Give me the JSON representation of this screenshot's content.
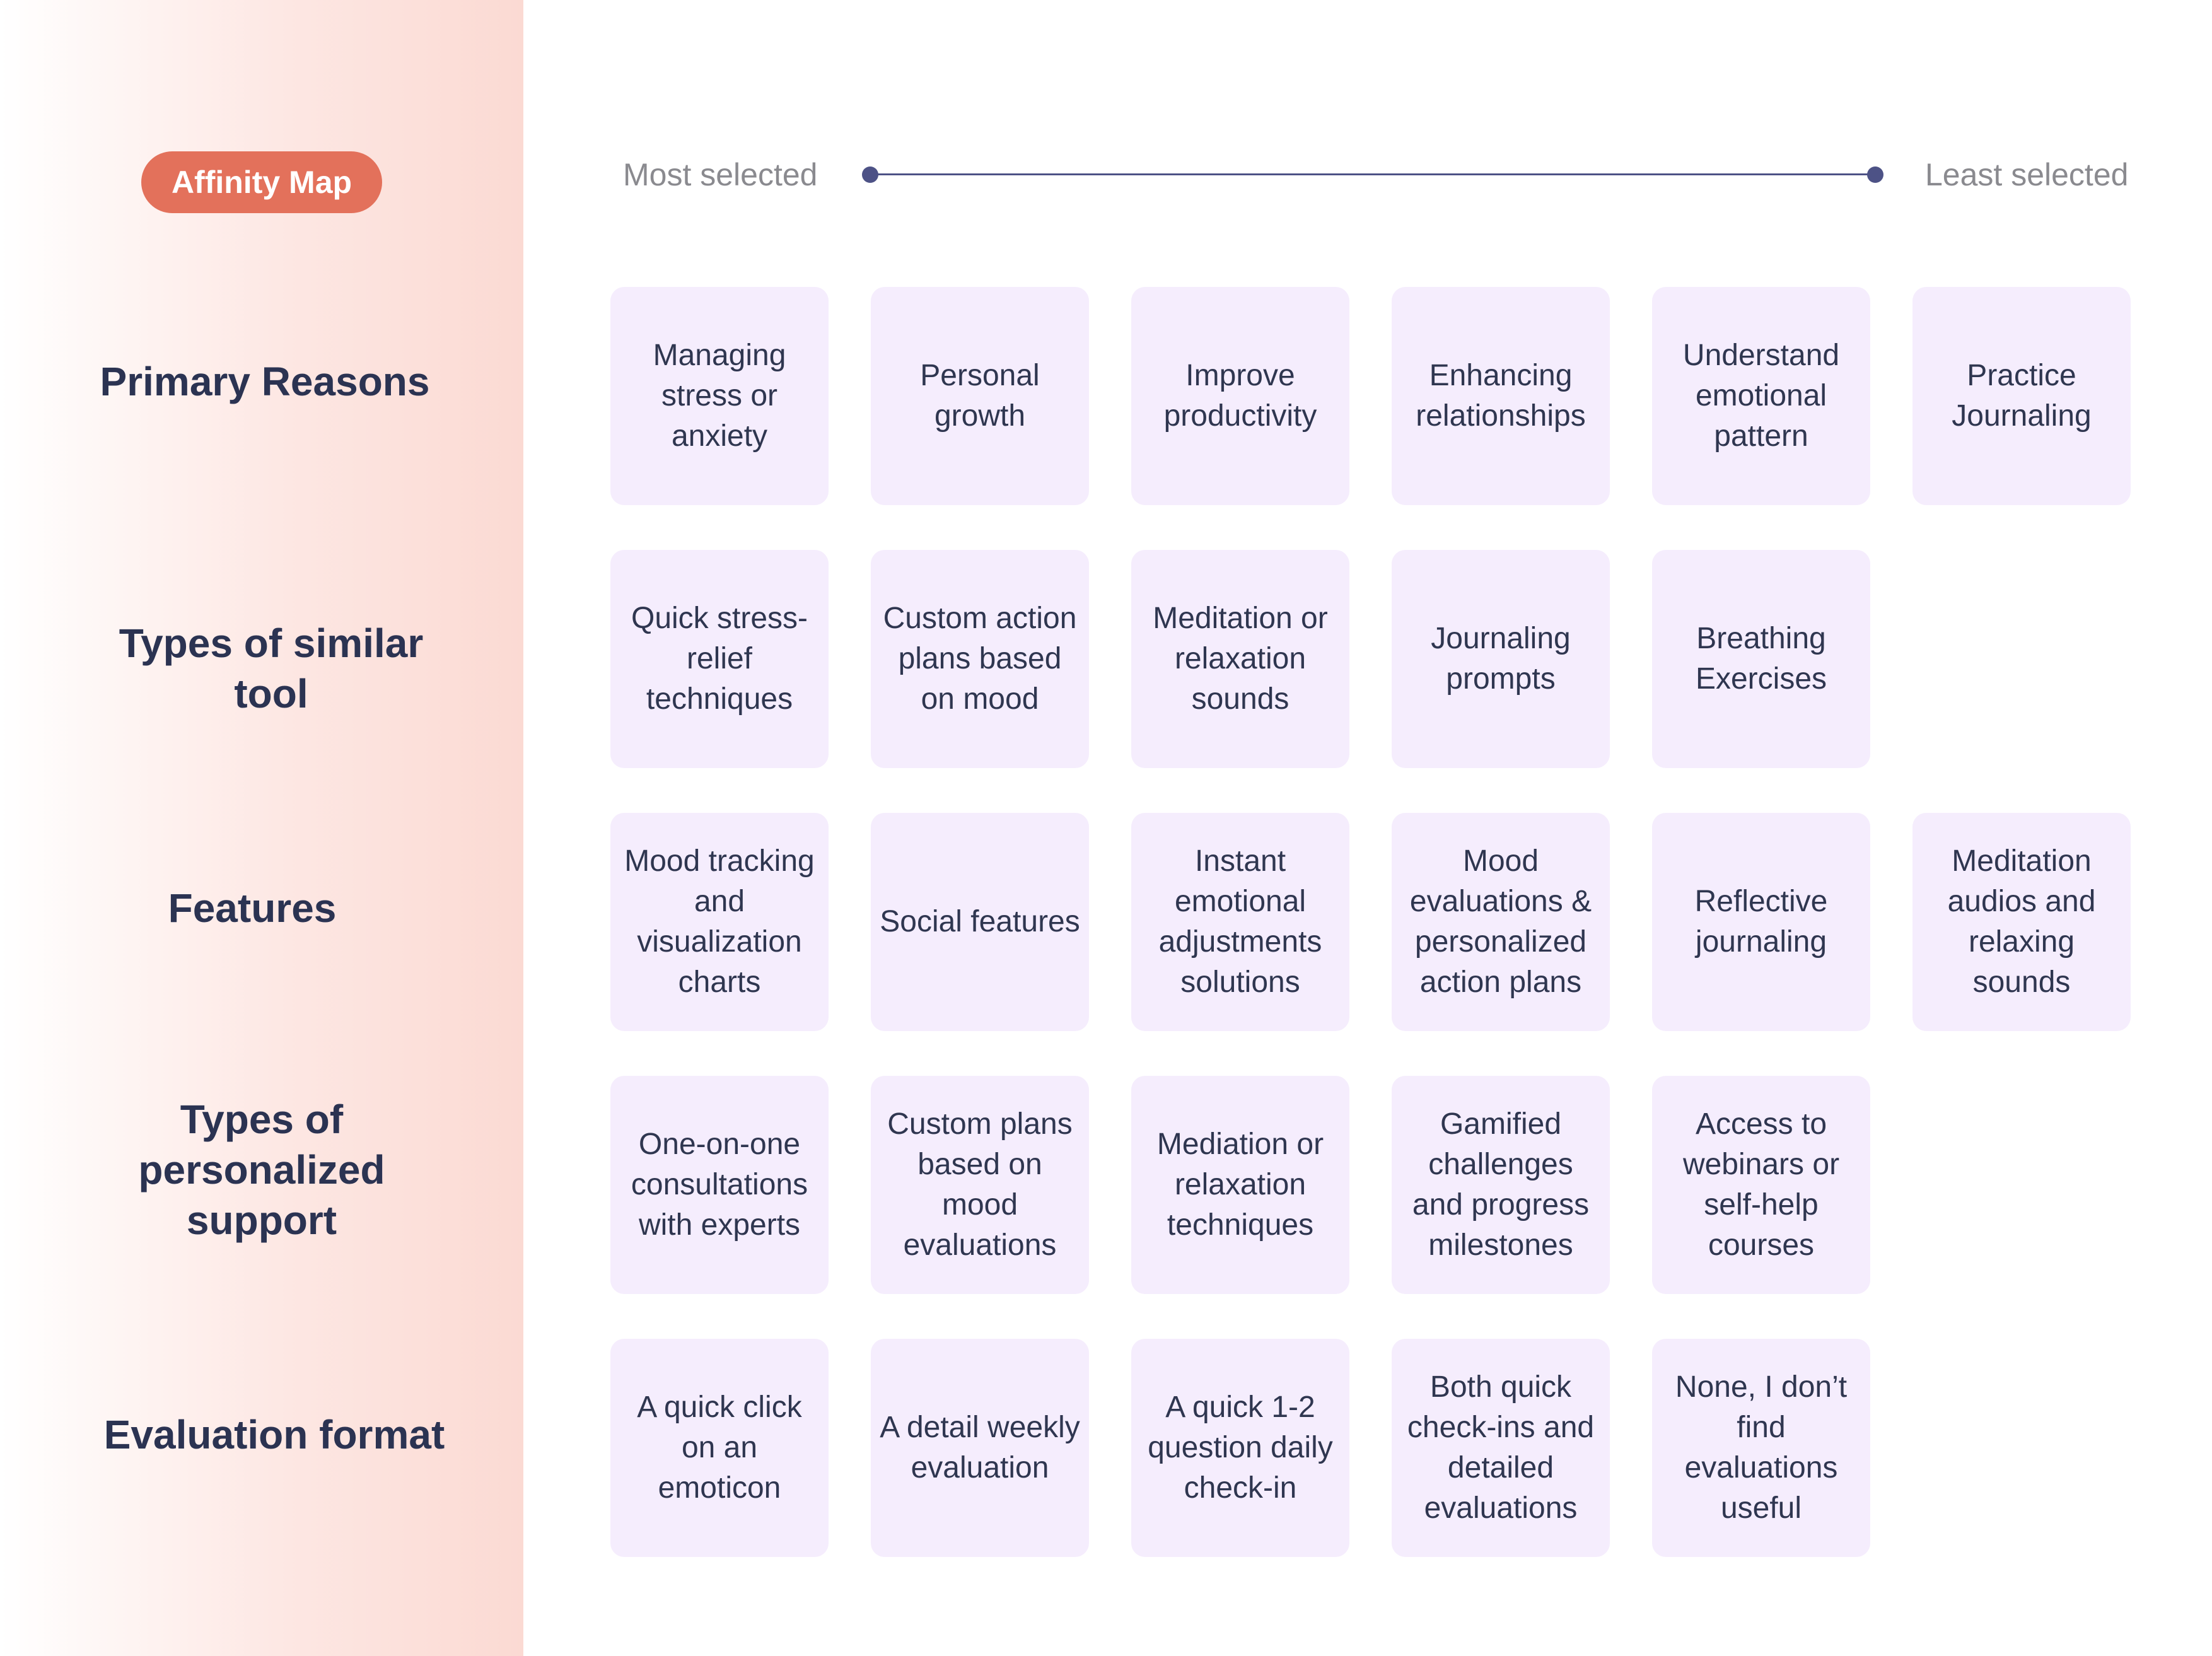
{
  "header": {
    "badge": "Affinity Map",
    "scale_start": "Most selected",
    "scale_end": "Least selected"
  },
  "rows": [
    {
      "label": "Primary Reasons",
      "cards": [
        "Managing stress or anxiety",
        "Personal growth",
        "Improve productivity",
        "Enhancing relationships",
        "Understand emotional pattern",
        "Practice Journaling"
      ]
    },
    {
      "label": "Types of similar tool",
      "cards": [
        "Quick stress-relief techniques",
        "Custom action plans based on mood",
        "Meditation or relaxation sounds",
        "Journaling prompts",
        "Breathing Exercises"
      ]
    },
    {
      "label": "Features",
      "cards": [
        "Mood tracking and visualization charts",
        "Social features",
        "Instant emotional adjustments solutions",
        "Mood evaluations & personalized action plans",
        "Reflective journaling",
        "Meditation audios and relaxing sounds"
      ]
    },
    {
      "label": "Types of personalized support",
      "cards": [
        "One-on-one consultations with experts",
        "Custom plans based on mood evaluations",
        "Mediation or relaxation techniques",
        "Gamified challenges and progress milestones",
        "Access to webinars or self-help courses"
      ]
    },
    {
      "label": "Evaluation format",
      "cards": [
        "A quick click on an emoticon",
        "A detail weekly evaluation",
        "A quick 1-2 question daily check-in",
        "Both quick check-ins and detailed evaluations",
        "None, I don’t find evaluations useful"
      ]
    }
  ],
  "colors": {
    "accent": "#e3715b",
    "card_bg": "#f5edfd",
    "text_dark": "#2b3352",
    "scale_line": "#4d5286"
  }
}
